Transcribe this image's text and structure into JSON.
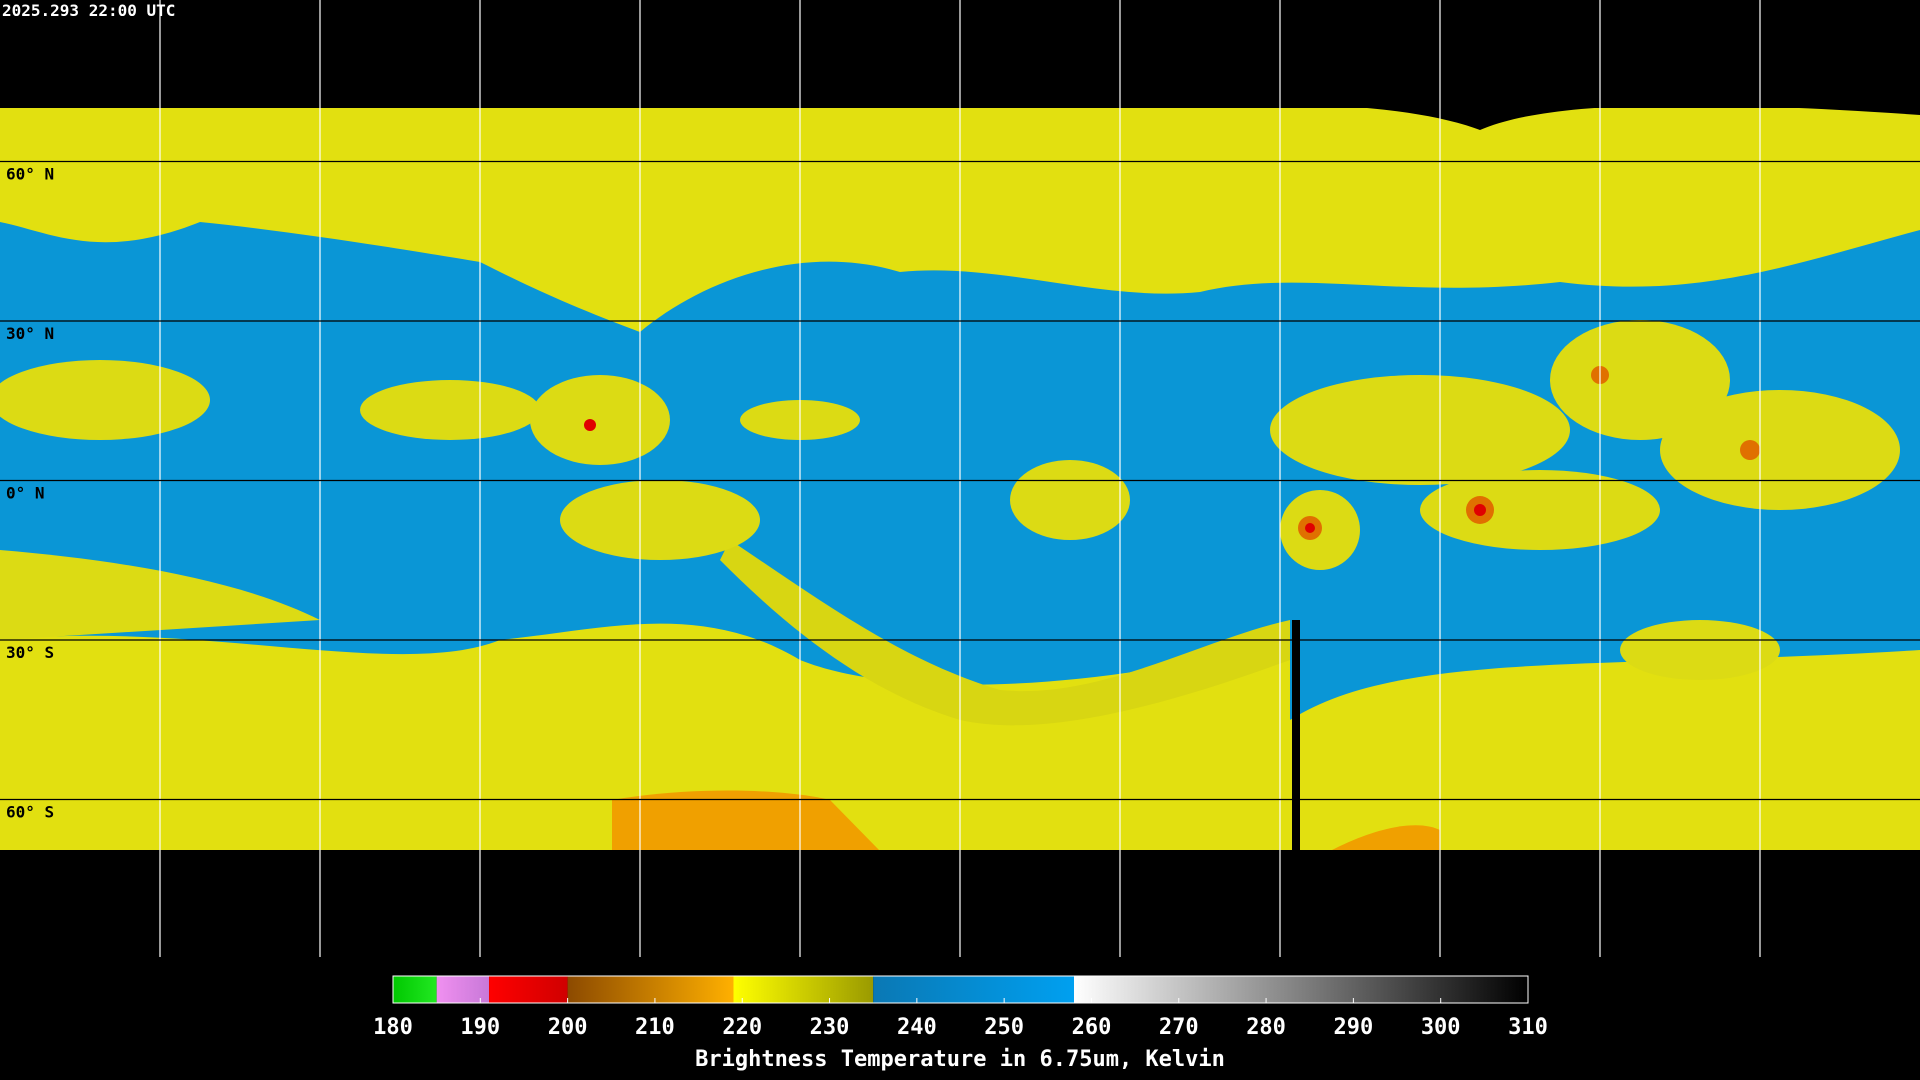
{
  "header": {
    "timestamp": "2025.293 22:00 UTC"
  },
  "lat_labels": [
    "60° N",
    "30° N",
    "0° N",
    "30° S",
    "60° S"
  ],
  "colorbar": {
    "label": "Brightness Temperature in 6.75um, Kelvin",
    "range": [
      180,
      310
    ],
    "ticks": [
      180,
      190,
      200,
      210,
      220,
      230,
      240,
      250,
      260,
      270,
      280,
      290,
      300,
      310
    ],
    "segments": [
      {
        "from": 180,
        "to": 185,
        "colors": [
          "#00c800",
          "#22e822"
        ]
      },
      {
        "from": 185,
        "to": 191,
        "colors": [
          "#f090f0",
          "#c878d8"
        ]
      },
      {
        "from": 191,
        "to": 200,
        "colors": [
          "#ff0000",
          "#d00000"
        ]
      },
      {
        "from": 200,
        "to": 219,
        "colors": [
          "#8c4a00",
          "#ffb000"
        ]
      },
      {
        "from": 219,
        "to": 235,
        "colors": [
          "#ffff00",
          "#9a9a00"
        ]
      },
      {
        "from": 235,
        "to": 258,
        "colors": [
          "#0a78b4",
          "#00a0f0"
        ]
      },
      {
        "from": 258,
        "to": 310,
        "colors": [
          "#ffffff",
          "#000000"
        ]
      }
    ]
  }
}
